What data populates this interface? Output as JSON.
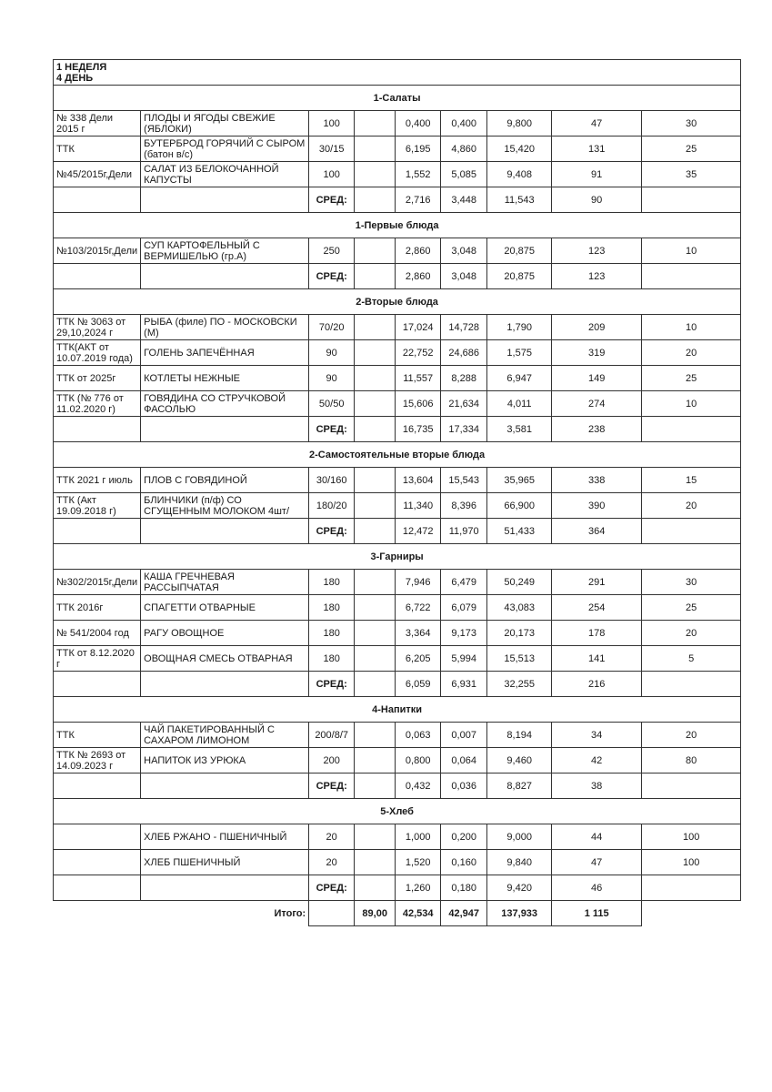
{
  "title": {
    "line1": "1 НЕДЕЛЯ",
    "line2": "4 ДЕНЬ"
  },
  "sections": [
    {
      "name": "1-Салаты",
      "rows": [
        [
          "№ 338 Дели 2015 г",
          "ПЛОДЫ И ЯГОДЫ СВЕЖИЕ (ЯБЛОКИ)",
          "100",
          "",
          "0,400",
          "0,400",
          "9,800",
          "47",
          "30"
        ],
        [
          "ТТК",
          "БУТЕРБРОД ГОРЯЧИЙ С СЫРОМ (батон в/с)",
          "30/15",
          "",
          "6,195",
          "4,860",
          "15,420",
          "131",
          "25"
        ],
        [
          "№45/2015г,Дели",
          "САЛАТ ИЗ БЕЛОКОЧАННОЙ КАПУСТЫ",
          "100",
          "",
          "1,552",
          "5,085",
          "9,408",
          "91",
          "35"
        ]
      ],
      "avg": [
        "2,716",
        "3,448",
        "11,543",
        "90"
      ]
    },
    {
      "name": "1-Первые блюда",
      "rows": [
        [
          "№103/2015г,Дели",
          "СУП КАРТОФЕЛЬНЫЙ С ВЕРМИШЕЛЬЮ (гр.А)",
          "250",
          "",
          "2,860",
          "3,048",
          "20,875",
          "123",
          "10"
        ]
      ],
      "avg": [
        "2,860",
        "3,048",
        "20,875",
        "123"
      ]
    },
    {
      "name": "2-Вторые блюда",
      "rows": [
        [
          "ТТК № 3063 от 29,10,2024 г",
          "РЫБА (филе) ПО - МОСКОВСКИ (М)",
          "70/20",
          "",
          "17,024",
          "14,728",
          "1,790",
          "209",
          "10"
        ],
        [
          "ТТК(АКТ от 10.07.2019 года)",
          "ГОЛЕНЬ ЗАПЕЧЁННАЯ",
          "90",
          "",
          "22,752",
          "24,686",
          "1,575",
          "319",
          "20"
        ],
        [
          "ТТК от 2025г",
          "КОТЛЕТЫ НЕЖНЫЕ",
          "90",
          "",
          "11,557",
          "8,288",
          "6,947",
          "149",
          "25"
        ],
        [
          "ТТК (№ 776 от 11.02.2020 г)",
          "ГОВЯДИНА СО СТРУЧКОВОЙ ФАСОЛЬЮ",
          "50/50",
          "",
          "15,606",
          "21,634",
          "4,011",
          "274",
          "10"
        ]
      ],
      "avg": [
        "16,735",
        "17,334",
        "3,581",
        "238"
      ]
    },
    {
      "name": "2-Самостоятельные вторые блюда",
      "rows": [
        [
          "ТТК 2021 г июль",
          "ПЛОВ С ГОВЯДИНОЙ",
          "30/160",
          "",
          "13,604",
          "15,543",
          "35,965",
          "338",
          "15"
        ],
        [
          "ТТК (Акт 19.09.2018 г)",
          "БЛИНЧИКИ  (п/ф) СО СГУЩЕННЫМ МОЛОКОМ 4шт/",
          "180/20",
          "",
          "11,340",
          "8,396",
          "66,900",
          "390",
          "20"
        ]
      ],
      "avg": [
        "12,472",
        "11,970",
        "51,433",
        "364"
      ]
    },
    {
      "name": "3-Гарниры",
      "rows": [
        [
          "№302/2015г,Дели",
          "КАША ГРЕЧНЕВАЯ РАССЫПЧАТАЯ",
          "180",
          "",
          "7,946",
          "6,479",
          "50,249",
          "291",
          "30"
        ],
        [
          "ТТК 2016г",
          "СПАГЕТТИ ОТВАРНЫЕ",
          "180",
          "",
          "6,722",
          "6,079",
          "43,083",
          "254",
          "25"
        ],
        [
          "№ 541/2004 год",
          "РАГУ ОВОЩНОЕ",
          "180",
          "",
          "3,364",
          "9,173",
          "20,173",
          "178",
          "20"
        ],
        [
          "ТТК  от 8.12.2020 г",
          "ОВОЩНАЯ СМЕСЬ ОТВАРНАЯ",
          "180",
          "",
          "6,205",
          "5,994",
          "15,513",
          "141",
          "5"
        ]
      ],
      "avg": [
        "6,059",
        "6,931",
        "32,255",
        "216"
      ]
    },
    {
      "name": "4-Напитки",
      "rows": [
        [
          "ТТК",
          "ЧАЙ ПАКЕТИРОВАННЫЙ С САХАРОМ ЛИМОНОМ",
          "200/8/7",
          "",
          "0,063",
          "0,007",
          "8,194",
          "34",
          "20"
        ],
        [
          "ТТК № 2693 от 14.09.2023 г",
          "НАПИТОК ИЗ УРЮКА",
          "200",
          "",
          "0,800",
          "0,064",
          "9,460",
          "42",
          "80"
        ]
      ],
      "avg": [
        "0,432",
        "0,036",
        "8,827",
        "38"
      ]
    },
    {
      "name": "5-Хлеб",
      "rows": [
        [
          "",
          "ХЛЕБ РЖАНО - ПШЕНИЧНЫЙ",
          "20",
          "",
          "1,000",
          "0,200",
          "9,000",
          "44",
          "100"
        ],
        [
          "",
          "ХЛЕБ ПШЕНИЧНЫЙ",
          "20",
          "",
          "1,520",
          "0,160",
          "9,840",
          "47",
          "100"
        ]
      ],
      "avg": [
        "1,260",
        "0,180",
        "9,420",
        "46"
      ]
    }
  ],
  "avg_label": "СРЕД:",
  "total": {
    "label": "Итого:",
    "values": [
      "",
      "89,00",
      "42,534",
      "42,947",
      "137,933",
      "1 115"
    ]
  }
}
